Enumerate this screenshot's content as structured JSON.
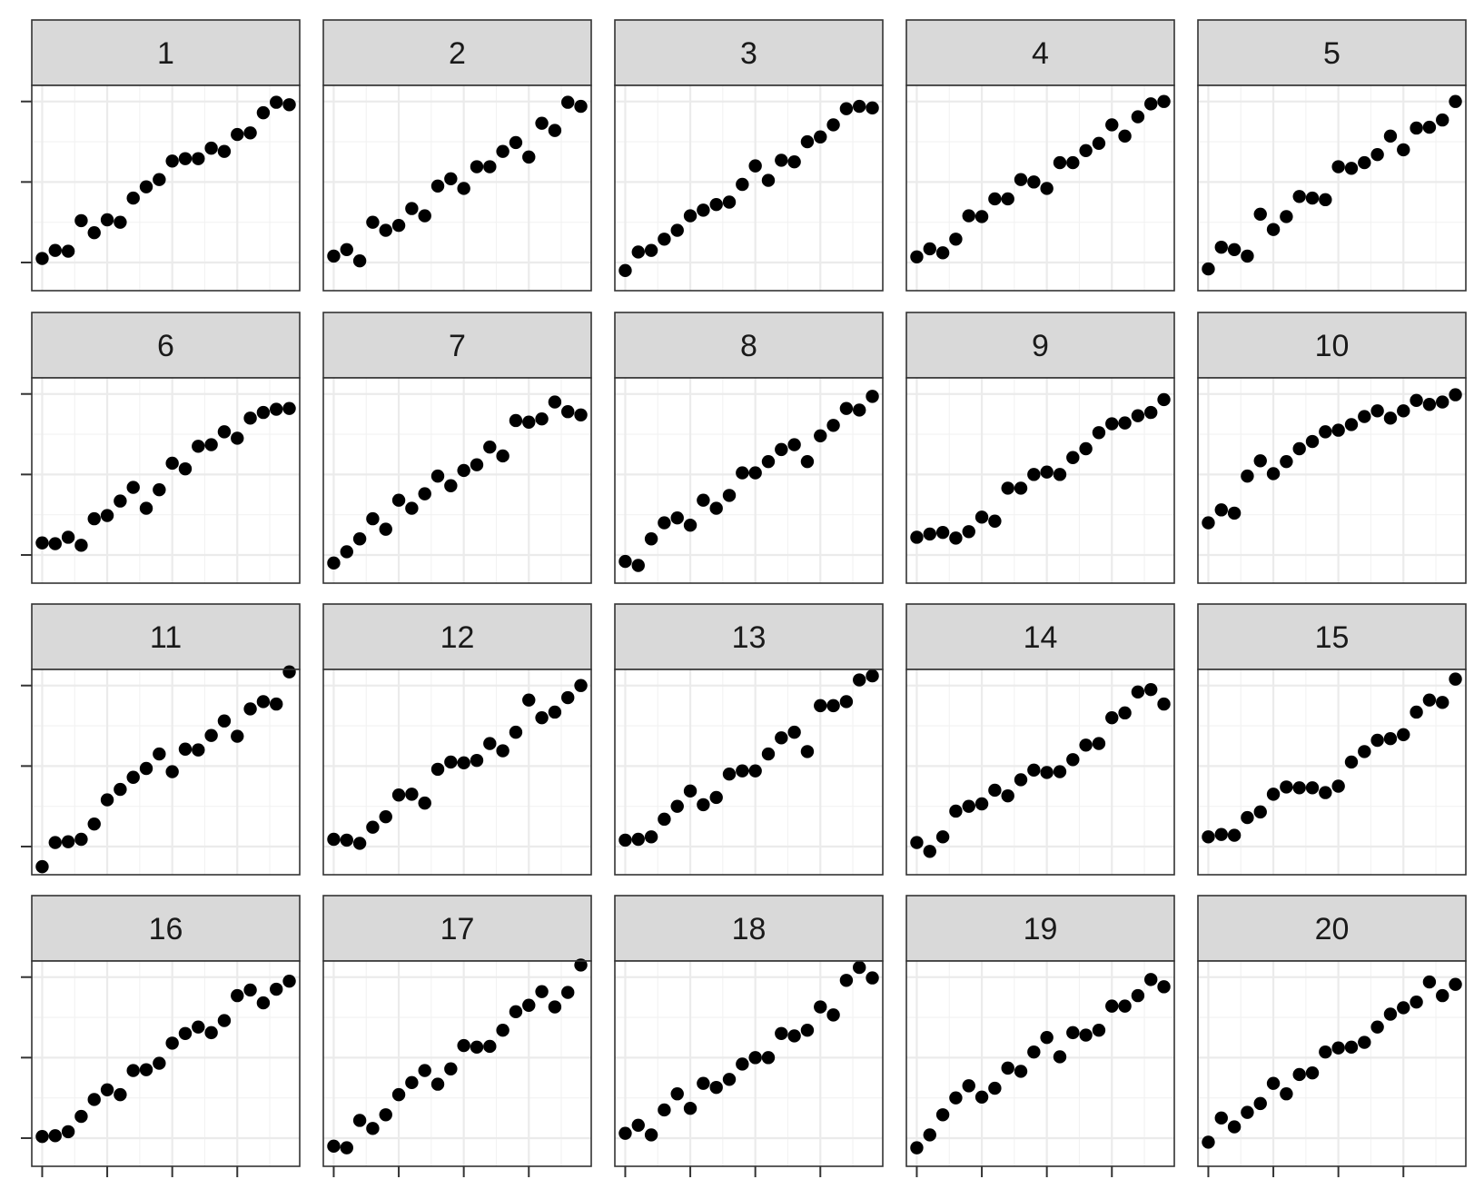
{
  "chart_data": {
    "type": "scatter",
    "layout": "facet-grid",
    "rows": 4,
    "cols": 5,
    "x": [
      1,
      2,
      3,
      4,
      5,
      6,
      7,
      8,
      9,
      10,
      11,
      12,
      13,
      14,
      15,
      16,
      17,
      18,
      19,
      20
    ],
    "xlim": [
      0.2,
      20.8
    ],
    "ylim": [
      -0.35,
      2.2
    ],
    "y_major_ticks": [
      0,
      1,
      2
    ],
    "x_major_ticks": [
      1,
      6,
      11,
      16,
      21
    ],
    "grid": true,
    "tick_labels_shown": false,
    "point_color": "#000000",
    "strip_fill": "#d9d9d9",
    "panels": [
      {
        "label": "1",
        "y": [
          0.05,
          0.15,
          0.14,
          0.52,
          0.37,
          0.53,
          0.5,
          0.8,
          0.94,
          1.03,
          1.26,
          1.29,
          1.29,
          1.42,
          1.38,
          1.59,
          1.61,
          1.86,
          1.99,
          1.96
        ]
      },
      {
        "label": "2",
        "y": [
          0.08,
          0.16,
          0.02,
          0.5,
          0.4,
          0.46,
          0.67,
          0.58,
          0.95,
          1.04,
          0.92,
          1.19,
          1.19,
          1.38,
          1.49,
          1.31,
          1.73,
          1.64,
          1.99,
          1.94
        ]
      },
      {
        "label": "3",
        "y": [
          -0.1,
          0.13,
          0.15,
          0.29,
          0.4,
          0.58,
          0.65,
          0.72,
          0.75,
          0.97,
          1.2,
          1.02,
          1.27,
          1.25,
          1.5,
          1.56,
          1.71,
          1.91,
          1.94,
          1.92
        ]
      },
      {
        "label": "4",
        "y": [
          0.07,
          0.17,
          0.12,
          0.29,
          0.58,
          0.57,
          0.79,
          0.79,
          1.03,
          1.0,
          0.92,
          1.24,
          1.24,
          1.39,
          1.48,
          1.71,
          1.57,
          1.81,
          1.97,
          2.0
        ]
      },
      {
        "label": "5",
        "y": [
          -0.08,
          0.19,
          0.16,
          0.08,
          0.6,
          0.41,
          0.57,
          0.82,
          0.8,
          0.78,
          1.19,
          1.17,
          1.24,
          1.34,
          1.57,
          1.4,
          1.67,
          1.68,
          1.77,
          2.0
        ]
      },
      {
        "label": "6",
        "y": [
          0.15,
          0.14,
          0.22,
          0.12,
          0.45,
          0.49,
          0.67,
          0.84,
          0.58,
          0.81,
          1.14,
          1.07,
          1.35,
          1.37,
          1.53,
          1.45,
          1.7,
          1.77,
          1.81,
          1.82
        ]
      },
      {
        "label": "7",
        "y": [
          -0.1,
          0.04,
          0.2,
          0.45,
          0.32,
          0.68,
          0.58,
          0.76,
          0.98,
          0.86,
          1.05,
          1.12,
          1.34,
          1.23,
          1.67,
          1.65,
          1.69,
          1.9,
          1.78,
          1.74
        ]
      },
      {
        "label": "8",
        "y": [
          -0.08,
          -0.13,
          0.2,
          0.4,
          0.46,
          0.37,
          0.68,
          0.58,
          0.74,
          1.02,
          1.02,
          1.16,
          1.31,
          1.37,
          1.16,
          1.48,
          1.61,
          1.82,
          1.8,
          1.97
        ]
      },
      {
        "label": "9",
        "y": [
          0.22,
          0.26,
          0.28,
          0.21,
          0.29,
          0.47,
          0.42,
          0.83,
          0.83,
          1.0,
          1.03,
          1.0,
          1.21,
          1.32,
          1.52,
          1.63,
          1.64,
          1.73,
          1.77,
          1.93
        ]
      },
      {
        "label": "10",
        "y": [
          0.4,
          0.56,
          0.52,
          0.98,
          1.17,
          1.01,
          1.16,
          1.32,
          1.41,
          1.53,
          1.55,
          1.62,
          1.72,
          1.79,
          1.7,
          1.79,
          1.92,
          1.87,
          1.9,
          1.99
        ]
      },
      {
        "label": "11",
        "y": [
          -0.25,
          0.05,
          0.06,
          0.09,
          0.28,
          0.58,
          0.71,
          0.86,
          0.97,
          1.15,
          0.93,
          1.21,
          1.2,
          1.38,
          1.56,
          1.37,
          1.71,
          1.8,
          1.77,
          2.17
        ]
      },
      {
        "label": "12",
        "y": [
          0.09,
          0.08,
          0.04,
          0.24,
          0.37,
          0.64,
          0.65,
          0.54,
          0.96,
          1.05,
          1.04,
          1.07,
          1.28,
          1.19,
          1.42,
          1.82,
          1.6,
          1.67,
          1.85,
          2.0
        ]
      },
      {
        "label": "13",
        "y": [
          0.08,
          0.09,
          0.12,
          0.34,
          0.5,
          0.69,
          0.52,
          0.61,
          0.9,
          0.94,
          0.94,
          1.15,
          1.35,
          1.42,
          1.18,
          1.75,
          1.75,
          1.8,
          2.07,
          2.12
        ]
      },
      {
        "label": "14",
        "y": [
          0.05,
          -0.06,
          0.12,
          0.44,
          0.5,
          0.53,
          0.7,
          0.63,
          0.83,
          0.95,
          0.92,
          0.93,
          1.08,
          1.26,
          1.28,
          1.6,
          1.66,
          1.92,
          1.95,
          1.77
        ]
      },
      {
        "label": "15",
        "y": [
          0.12,
          0.15,
          0.14,
          0.36,
          0.43,
          0.65,
          0.74,
          0.73,
          0.73,
          0.67,
          0.75,
          1.05,
          1.18,
          1.32,
          1.34,
          1.39,
          1.67,
          1.82,
          1.79,
          2.08
        ]
      },
      {
        "label": "16",
        "y": [
          0.02,
          0.03,
          0.08,
          0.27,
          0.48,
          0.6,
          0.54,
          0.84,
          0.85,
          0.93,
          1.18,
          1.3,
          1.38,
          1.31,
          1.46,
          1.77,
          1.84,
          1.68,
          1.85,
          1.95
        ]
      },
      {
        "label": "17",
        "y": [
          -0.1,
          -0.12,
          0.22,
          0.12,
          0.29,
          0.54,
          0.69,
          0.84,
          0.67,
          0.86,
          1.15,
          1.13,
          1.14,
          1.34,
          1.57,
          1.65,
          1.82,
          1.63,
          1.81,
          2.15
        ]
      },
      {
        "label": "18",
        "y": [
          0.06,
          0.16,
          0.04,
          0.35,
          0.55,
          0.37,
          0.68,
          0.63,
          0.73,
          0.92,
          1.0,
          1.0,
          1.3,
          1.27,
          1.34,
          1.63,
          1.53,
          1.96,
          2.12,
          1.99
        ]
      },
      {
        "label": "19",
        "y": [
          -0.12,
          0.04,
          0.29,
          0.5,
          0.65,
          0.51,
          0.62,
          0.87,
          0.83,
          1.07,
          1.25,
          1.01,
          1.31,
          1.28,
          1.34,
          1.64,
          1.64,
          1.77,
          1.97,
          1.88
        ]
      },
      {
        "label": "20",
        "y": [
          -0.05,
          0.25,
          0.14,
          0.32,
          0.43,
          0.68,
          0.55,
          0.79,
          0.81,
          1.07,
          1.12,
          1.13,
          1.19,
          1.38,
          1.54,
          1.62,
          1.69,
          1.94,
          1.77,
          1.91
        ]
      }
    ]
  }
}
